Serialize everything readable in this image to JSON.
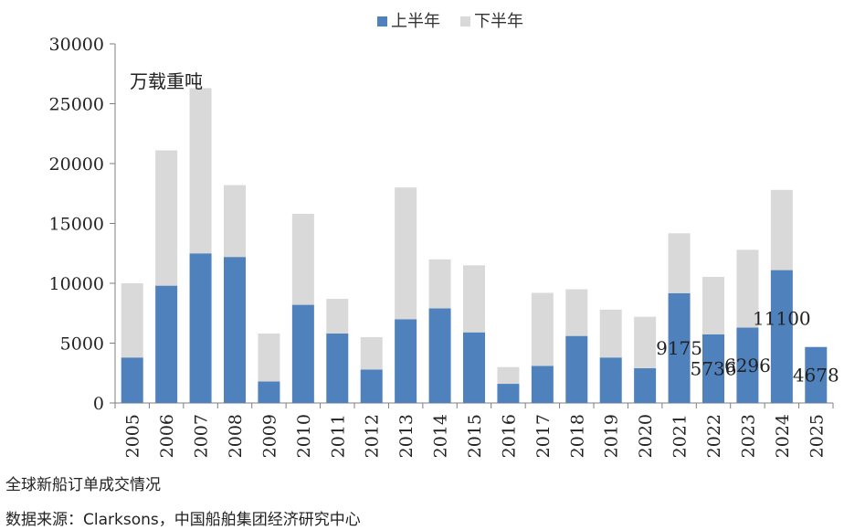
{
  "chart_data": {
    "type": "bar",
    "stacked": true,
    "unit": "万载重吨",
    "categories": [
      "2005",
      "2006",
      "2007",
      "2008",
      "2009",
      "2010",
      "2011",
      "2012",
      "2013",
      "2014",
      "2015",
      "2016",
      "2017",
      "2018",
      "2019",
      "2020",
      "2021",
      "2022",
      "2023",
      "2024",
      "2025"
    ],
    "series": [
      {
        "name": "上半年",
        "color": "#4f81bd",
        "values": [
          3800,
          9800,
          12500,
          12200,
          1800,
          8200,
          5800,
          2800,
          7000,
          7900,
          5900,
          1600,
          3100,
          5600,
          3800,
          2900,
          9175,
          5736,
          6296,
          11100,
          4678
        ]
      },
      {
        "name": "下半年",
        "color": "#d9d9d9",
        "values": [
          6200,
          11300,
          13800,
          6000,
          4000,
          7600,
          2900,
          2700,
          11000,
          4100,
          5600,
          1400,
          6100,
          3900,
          4000,
          4300,
          5000,
          4800,
          6500,
          6700,
          null
        ]
      }
    ],
    "data_labels": [
      {
        "category": "2021",
        "text": "9175"
      },
      {
        "category": "2022",
        "text": "5736"
      },
      {
        "category": "2023",
        "text": "6296"
      },
      {
        "category": "2024",
        "text": "11100"
      },
      {
        "category": "2025",
        "text": "4678"
      }
    ],
    "ylim": [
      0,
      30000
    ],
    "yticks": [
      0,
      5000,
      10000,
      15000,
      20000,
      25000,
      30000
    ],
    "legend_position": "top",
    "grid": false
  },
  "captions": {
    "title": "全球新船订单成交情况",
    "source": "数据来源：Clarksons，中国船舶集团经济研究中心"
  }
}
